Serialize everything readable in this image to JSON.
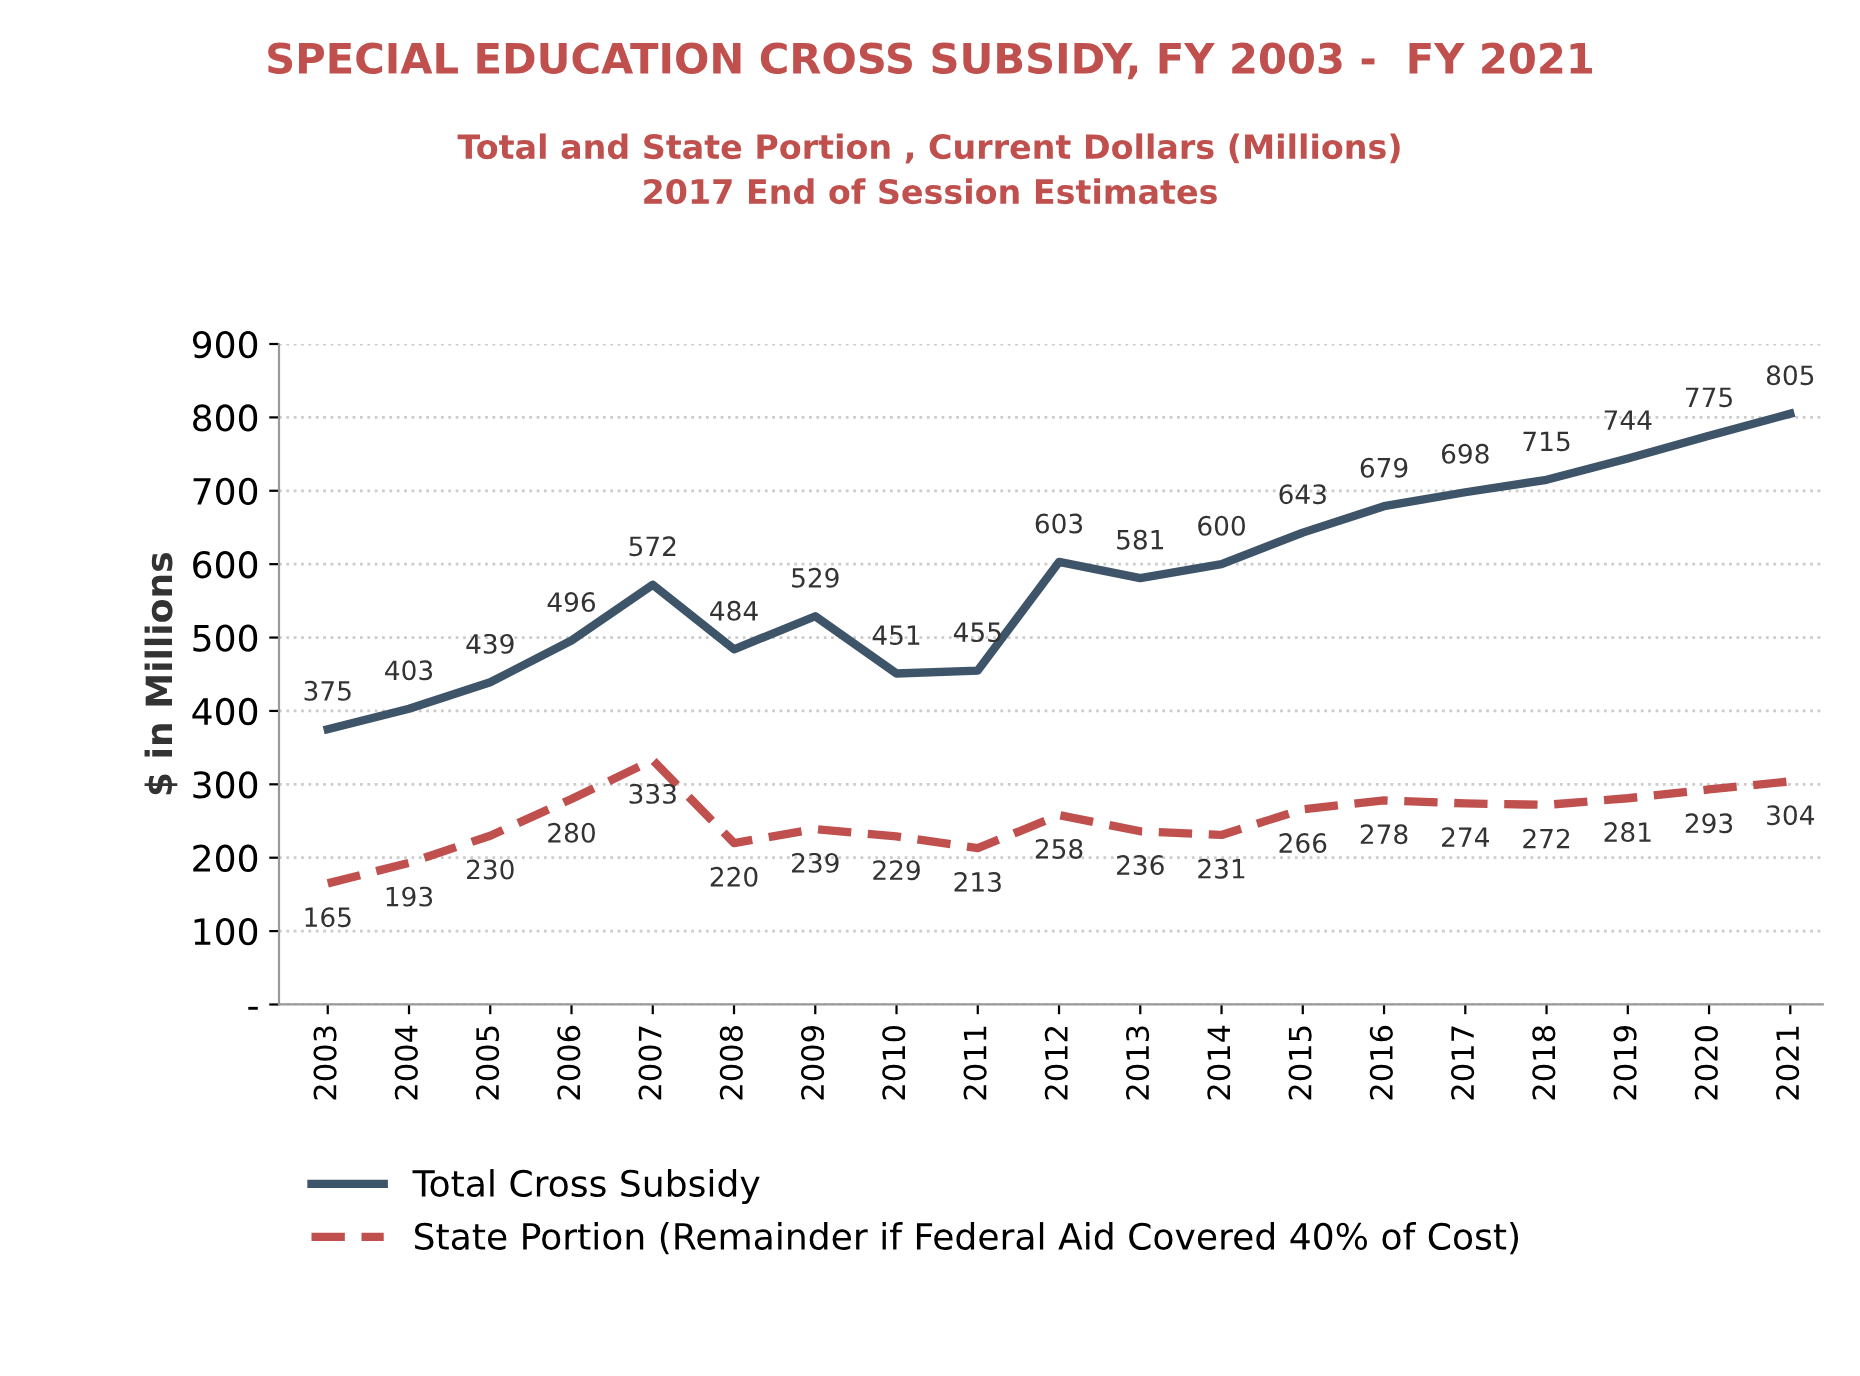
{
  "chart_data": {
    "type": "line",
    "title": "SPECIAL EDUCATION CROSS SUBSIDY, FY 2003 -  FY 2021",
    "subtitle": "Total and State Portion , Current Dollars (Millions)\n2017 End of Session Estimates",
    "ylabel": "$ in Millions",
    "categories": [
      "2003",
      "2004",
      "2005",
      "2006",
      "2007",
      "2008",
      "2009",
      "2010",
      "2011",
      "2012",
      "2013",
      "2014",
      "2015",
      "2016",
      "2017",
      "2018",
      "2019",
      "2020",
      "2021"
    ],
    "series": [
      {
        "name": "Total Cross Subsidy",
        "color": "#3e5468",
        "line_style": "solid",
        "values": [
          375,
          403,
          439,
          496,
          572,
          484,
          529,
          451,
          455,
          603,
          581,
          600,
          643,
          679,
          698,
          715,
          744,
          775,
          805
        ]
      },
      {
        "name": "State Portion (Remainder if Federal Aid Covered 40% of Cost)",
        "color": "#c0504d",
        "line_style": "dashed",
        "values": [
          165,
          193,
          230,
          280,
          333,
          220,
          239,
          229,
          213,
          258,
          236,
          231,
          266,
          278,
          274,
          272,
          281,
          293,
          304
        ]
      }
    ],
    "ylim": [
      0,
      900
    ],
    "yticks": [
      {
        "value": 0,
        "label": "-"
      },
      100,
      200,
      300,
      400,
      500,
      600,
      700,
      800,
      900
    ],
    "grid": "y",
    "legend": "bottom",
    "data_labels": true
  }
}
